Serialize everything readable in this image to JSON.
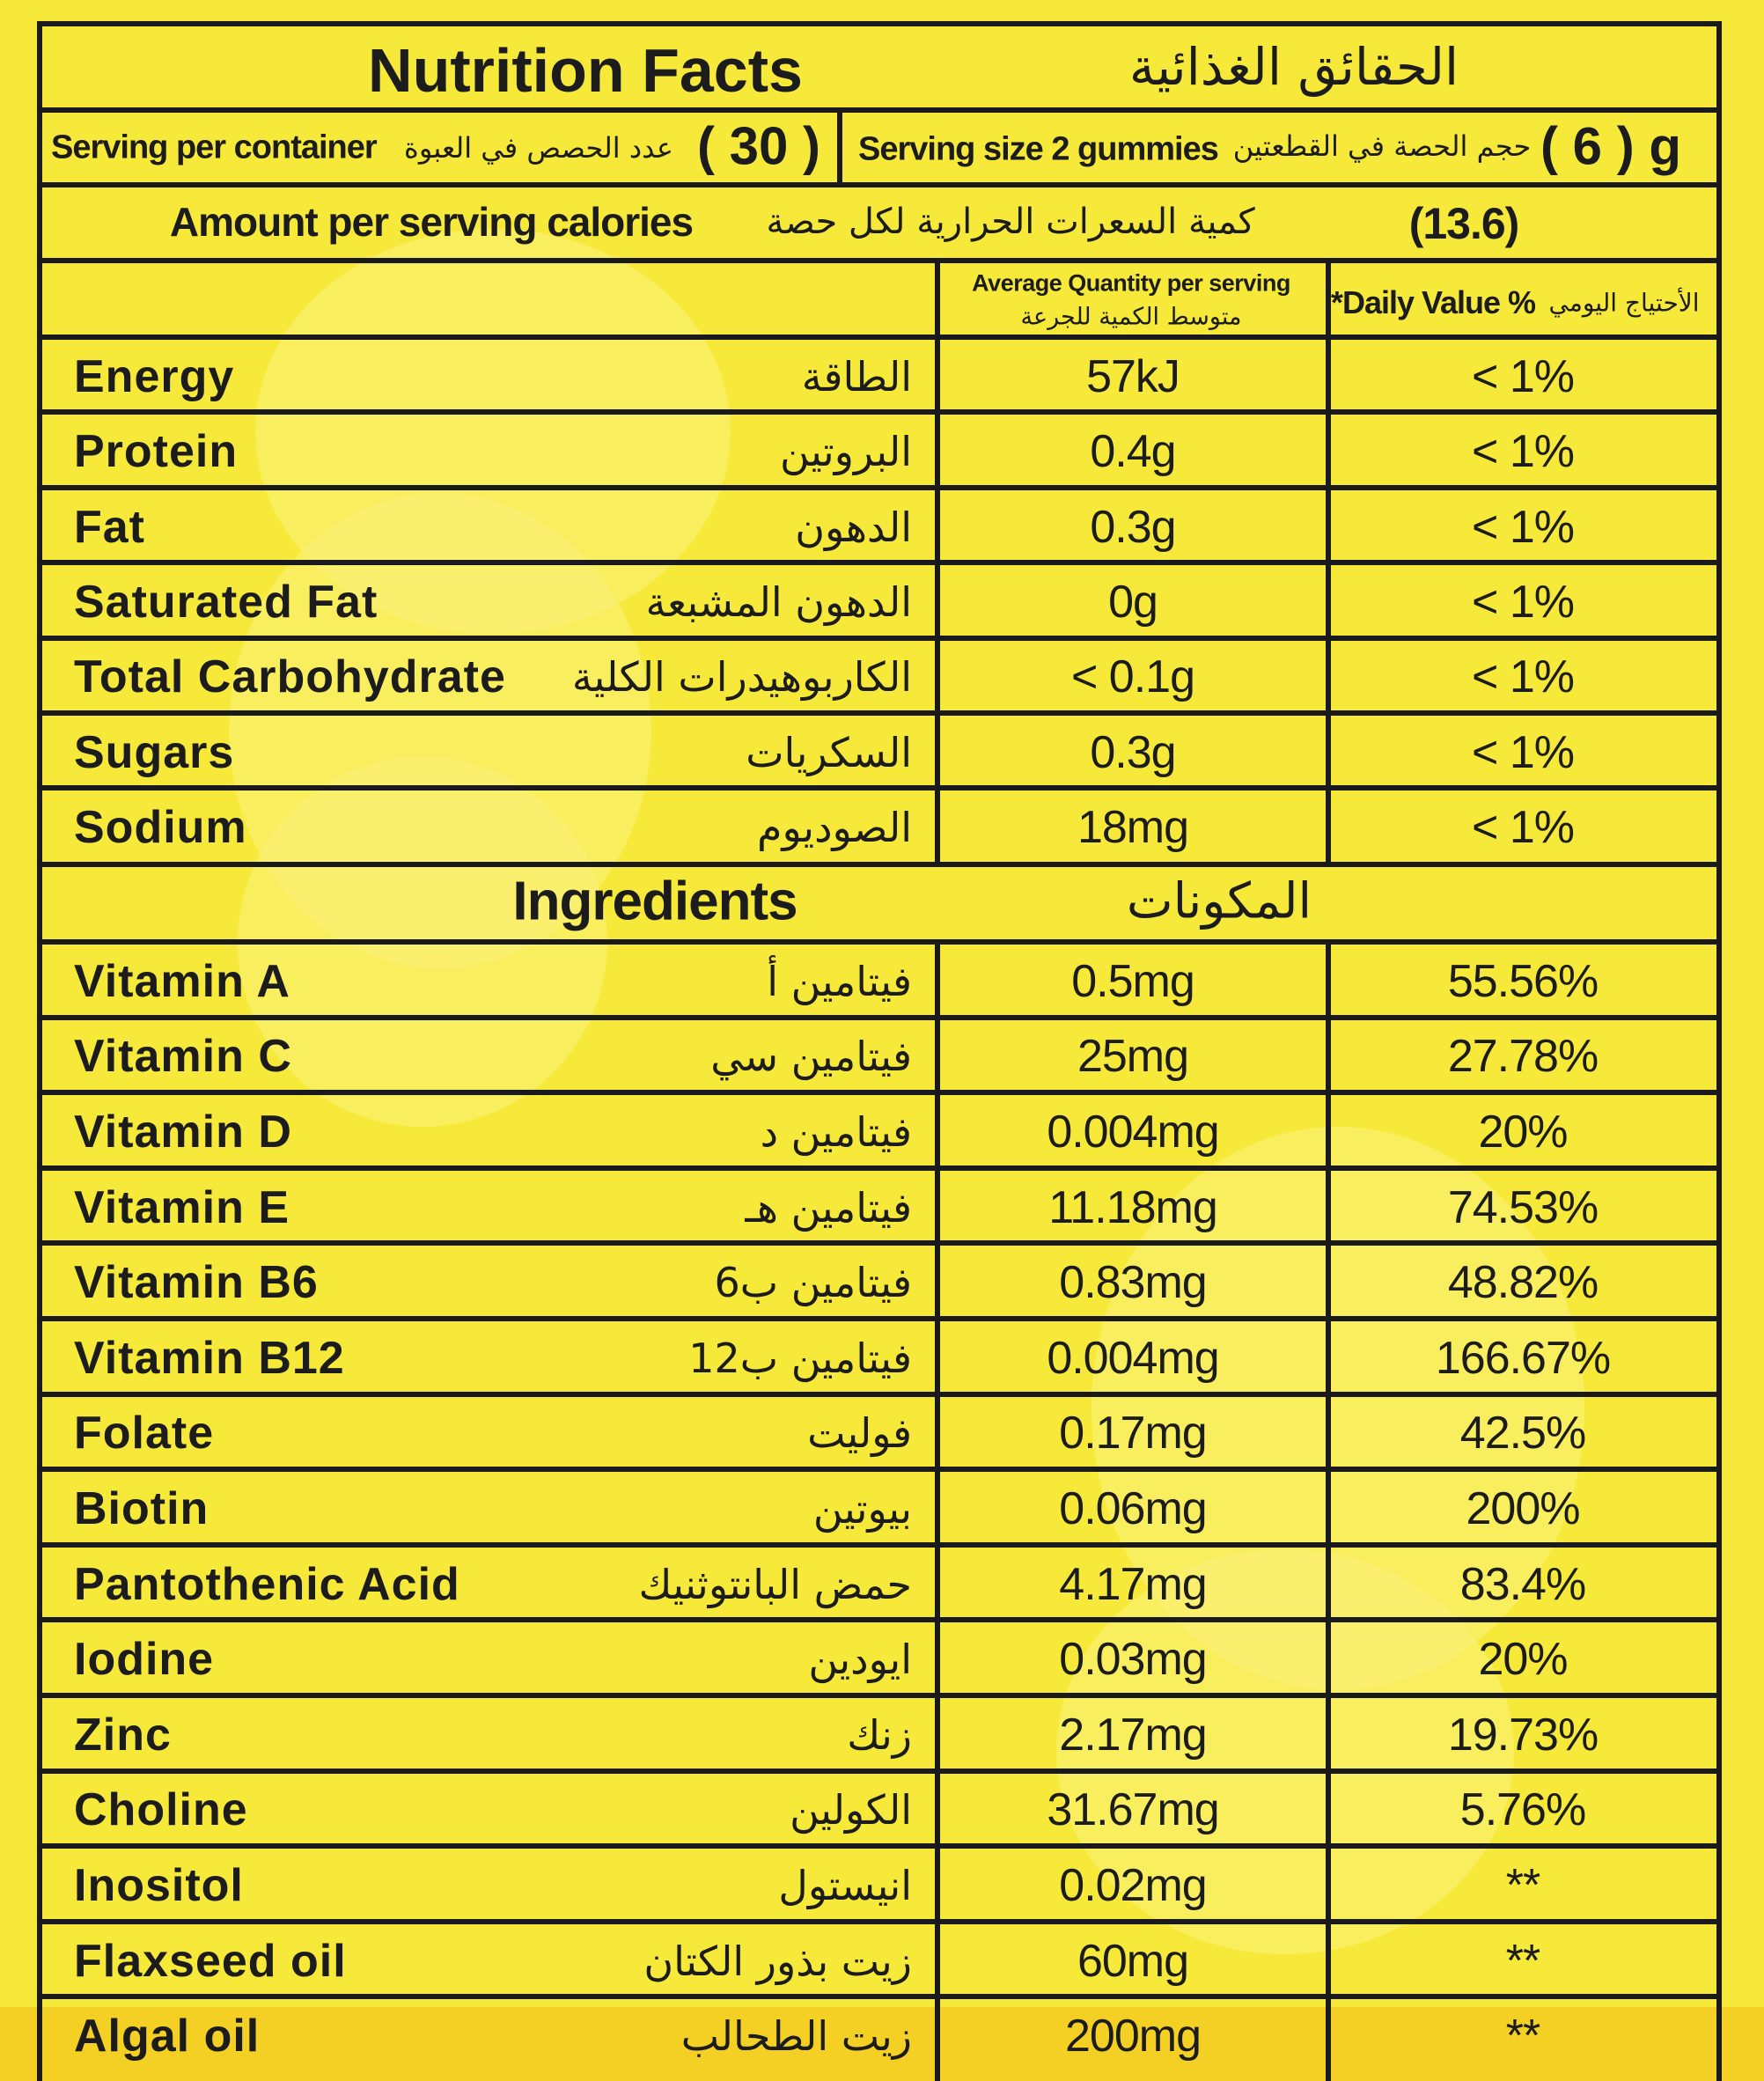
{
  "header": {
    "title_en": "Nutrition Facts",
    "title_ar": "الحقائق الغذائية"
  },
  "serving": {
    "per_container_en": "Serving per container",
    "per_container_ar": "عدد الحصص في العبوة",
    "per_container_value": "( 30 )",
    "size_en": "Serving size 2 gummies",
    "size_ar": "حجم الحصة في القطعتين",
    "size_value": "( 6 ) g"
  },
  "calories": {
    "label_en": "Amount per serving calories",
    "label_ar": "كمية السعرات الحرارية لكل حصة",
    "value": "(13.6)"
  },
  "columns": {
    "avg_en": "Average Quantity per serving",
    "avg_ar": "متوسط الكمية للجرعة",
    "dv_en": "*Daily Value %",
    "dv_ar": "الأحتياج اليومي"
  },
  "nutrients": [
    {
      "en": "Energy",
      "ar": "الطاقة",
      "qty": "57kJ",
      "dv": "< 1%"
    },
    {
      "en": "Protein",
      "ar": "البروتين",
      "qty": "0.4g",
      "dv": "< 1%"
    },
    {
      "en": "Fat",
      "ar": "الدهون",
      "qty": "0.3g",
      "dv": "< 1%"
    },
    {
      "en": "Saturated Fat",
      "ar": "الدهون المشبعة",
      "qty": "0g",
      "dv": "< 1%"
    },
    {
      "en": "Total Carbohydrate",
      "ar": "الكاربوهيدرات الكلية",
      "qty": "< 0.1g",
      "dv": "< 1%"
    },
    {
      "en": "Sugars",
      "ar": "السكريات",
      "qty": "0.3g",
      "dv": "< 1%"
    },
    {
      "en": "Sodium",
      "ar": "الصوديوم",
      "qty": "18mg",
      "dv": "< 1%"
    }
  ],
  "ingredients_heading": {
    "en": "Ingredients",
    "ar": "المكونات"
  },
  "ingredients": [
    {
      "en": "Vitamin A",
      "ar": "فيتامين أ",
      "qty": "0.5mg",
      "dv": "55.56%"
    },
    {
      "en": "Vitamin C",
      "ar": "فيتامين سي",
      "qty": "25mg",
      "dv": "27.78%"
    },
    {
      "en": "Vitamin D",
      "ar": "فيتامين د",
      "qty": "0.004mg",
      "dv": "20%"
    },
    {
      "en": "Vitamin E",
      "ar": "فيتامين هـ",
      "qty": "11.18mg",
      "dv": "74.53%"
    },
    {
      "en": "Vitamin B6",
      "ar": "فيتامين ب6",
      "qty": "0.83mg",
      "dv": "48.82%"
    },
    {
      "en": "Vitamin B12",
      "ar": "فيتامين ب12",
      "qty": "0.004mg",
      "dv": "166.67%"
    },
    {
      "en": "Folate",
      "ar": "فوليت",
      "qty": "0.17mg",
      "dv": "42.5%"
    },
    {
      "en": "Biotin",
      "ar": "بيوتين",
      "qty": "0.06mg",
      "dv": "200%"
    },
    {
      "en": "Pantothenic Acid",
      "ar": "حمض البانتوثنيك",
      "qty": "4.17mg",
      "dv": "83.4%"
    },
    {
      "en": "Iodine",
      "ar": "ايودين",
      "qty": "0.03mg",
      "dv": "20%"
    },
    {
      "en": "Zinc",
      "ar": "زنك",
      "qty": "2.17mg",
      "dv": "19.73%"
    },
    {
      "en": "Choline",
      "ar": "الكولين",
      "qty": "31.67mg",
      "dv": "5.76%"
    },
    {
      "en": "Inositol",
      "ar": "انيستول",
      "qty": "0.02mg",
      "dv": "**"
    },
    {
      "en": "Flaxseed oil",
      "ar": "زيت بذور الكتان",
      "qty": "60mg",
      "dv": "**"
    },
    {
      "en": "Algal oil",
      "ar": "زيت الطحالب",
      "qty": "200mg",
      "dv": "**"
    }
  ]
}
